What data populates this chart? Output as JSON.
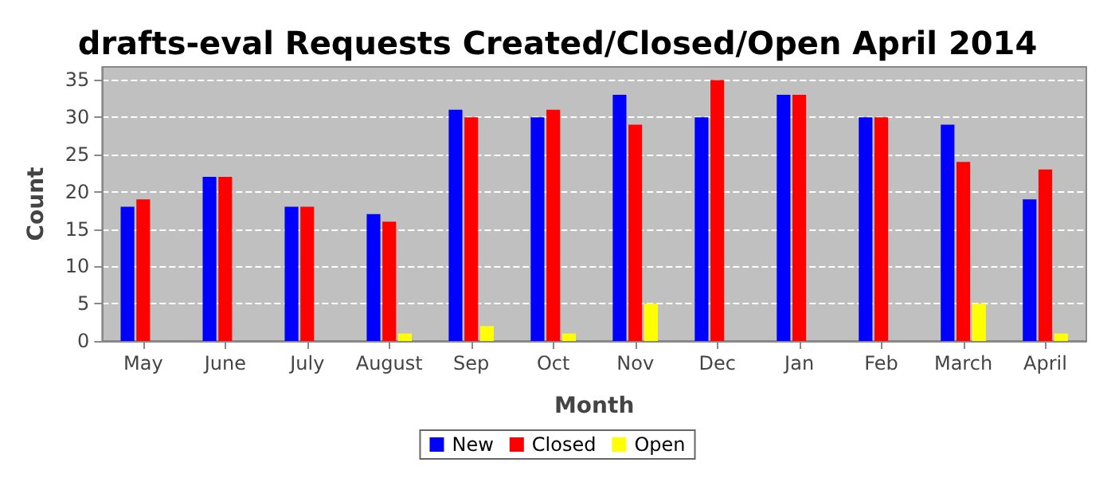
{
  "chart_data": {
    "type": "bar",
    "title": "drafts-eval Requests Created/Closed/Open April 2014",
    "xlabel": "Month",
    "ylabel": "Count",
    "categories": [
      "May",
      "June",
      "July",
      "August",
      "Sep",
      "Oct",
      "Nov",
      "Dec",
      "Jan",
      "Feb",
      "March",
      "April"
    ],
    "series": [
      {
        "name": "New",
        "color": "#0000ff",
        "values": [
          18,
          22,
          18,
          17,
          31,
          30,
          33,
          30,
          33,
          30,
          29,
          19
        ]
      },
      {
        "name": "Closed",
        "color": "#ff0000",
        "values": [
          19,
          22,
          18,
          16,
          30,
          31,
          29,
          35,
          33,
          30,
          24,
          23
        ]
      },
      {
        "name": "Open",
        "color": "#ffff00",
        "values": [
          0,
          0,
          0,
          1,
          2,
          1,
          5,
          0,
          0,
          0,
          5,
          1
        ]
      }
    ],
    "ylim": [
      0,
      36.75
    ],
    "yticks": [
      0,
      5,
      10,
      15,
      20,
      25,
      30,
      35
    ],
    "grid": "y",
    "legend": "bottom"
  }
}
